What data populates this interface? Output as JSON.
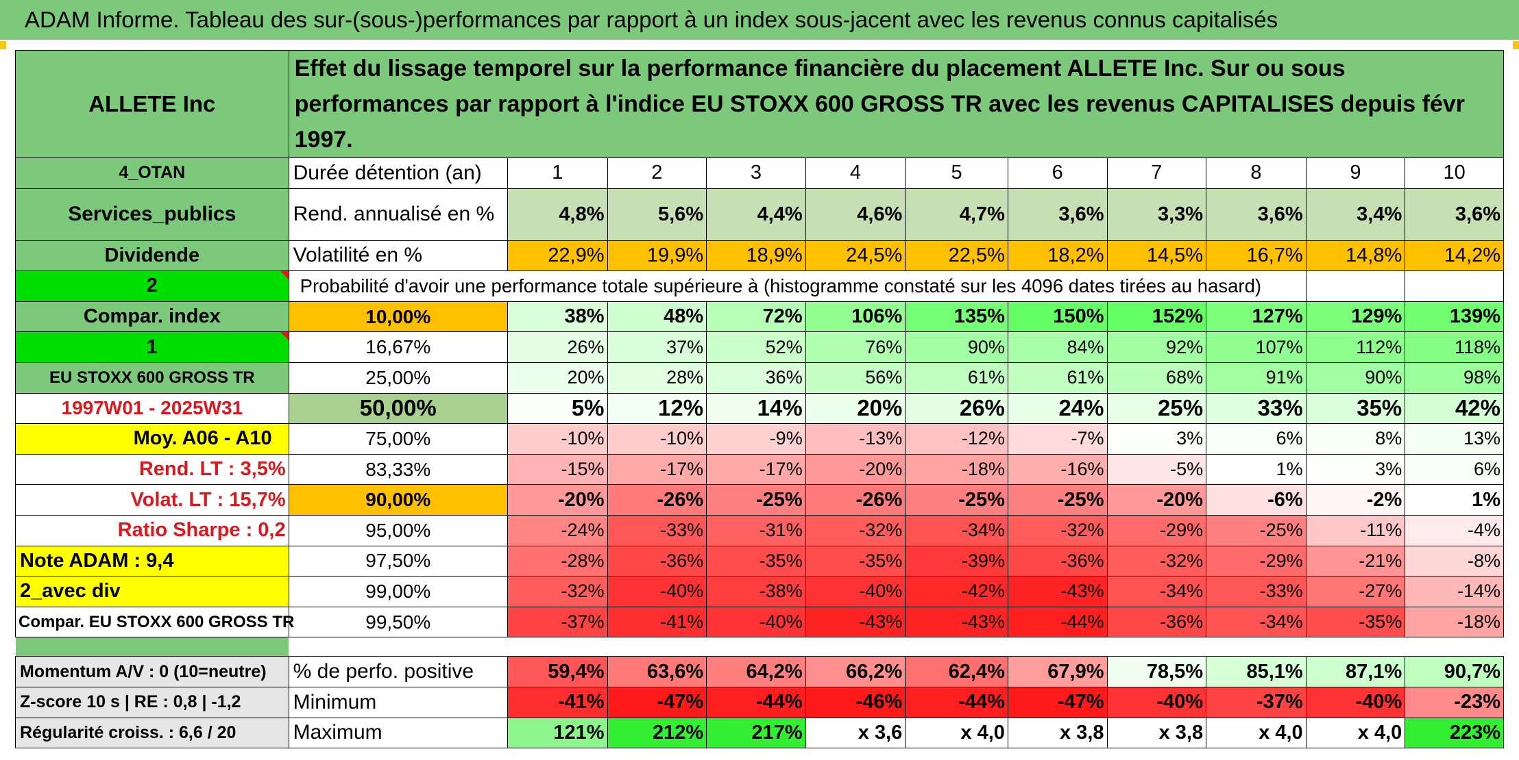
{
  "report_title": "ADAM Informe. Tableau des sur-(sous-)performances par rapport à un index sous-jacent avec les revenus connus capitalisés",
  "company": "ALLETE Inc",
  "headline": "Effet du lissage temporel sur la performance financière du placement ALLETE Inc. Sur ou sous performances par rapport à l'indice EU STOXX 600 GROSS TR avec les revenus CAPITALISES depuis févr 1997.",
  "colors": {
    "header_green": "#7dc97b",
    "orange": "#ffc000",
    "yellow": "#ffff00",
    "bright_green": "#00dd00",
    "red_text": "#d71920"
  },
  "left_labels": {
    "group": "4_OTAN",
    "sector": "Services_publics",
    "dividend": "Dividende",
    "param_2": "2",
    "compar_index": "Compar. index",
    "param_1": "1",
    "index_name": "EU STOXX 600 GROSS TR",
    "period": "1997W01 - 2025W31",
    "moy": "Moy. A06 - A10",
    "rend_lt": "Rend. LT :   3,5%",
    "volat_lt": "Volat. LT :   15,7%",
    "sharpe": "Ratio Sharpe :    0,2",
    "note": "Note ADAM : 9,4",
    "avec_div": "2_avec div",
    "compar_full": "Compar. EU STOXX 600 GROSS TR"
  },
  "header": {
    "duration_label": "Durée détention (an)",
    "years": [
      "1",
      "2",
      "3",
      "4",
      "5",
      "6",
      "7",
      "8",
      "9",
      "10"
    ]
  },
  "rend_row": {
    "label": "Rend. annualisé en %",
    "values": [
      "4,8%",
      "5,6%",
      "4,4%",
      "4,6%",
      "4,7%",
      "3,6%",
      "3,3%",
      "3,6%",
      "3,4%",
      "3,6%"
    ]
  },
  "vol_row": {
    "label": "Volatilité en %",
    "values": [
      "22,9%",
      "19,9%",
      "18,9%",
      "24,5%",
      "22,5%",
      "18,2%",
      "14,5%",
      "16,7%",
      "14,8%",
      "14,2%"
    ]
  },
  "probability_title": "Probabilité d'avoir une performance totale supérieure à (histogramme constaté sur les 4096 dates tirées au hasard)",
  "prob_rows": [
    {
      "threshold": "10,00%",
      "values": [
        "38%",
        "48%",
        "72%",
        "106%",
        "135%",
        "150%",
        "152%",
        "127%",
        "129%",
        "139%"
      ]
    },
    {
      "threshold": "16,67%",
      "values": [
        "26%",
        "37%",
        "52%",
        "76%",
        "90%",
        "84%",
        "92%",
        "107%",
        "112%",
        "118%"
      ]
    },
    {
      "threshold": "25,00%",
      "values": [
        "20%",
        "28%",
        "36%",
        "56%",
        "61%",
        "61%",
        "68%",
        "91%",
        "90%",
        "98%"
      ]
    },
    {
      "threshold": "50,00%",
      "values": [
        "5%",
        "12%",
        "14%",
        "20%",
        "26%",
        "24%",
        "25%",
        "33%",
        "35%",
        "42%"
      ]
    },
    {
      "threshold": "75,00%",
      "values": [
        "-10%",
        "-10%",
        "-9%",
        "-13%",
        "-12%",
        "-7%",
        "3%",
        "6%",
        "8%",
        "13%"
      ]
    },
    {
      "threshold": "83,33%",
      "values": [
        "-15%",
        "-17%",
        "-17%",
        "-20%",
        "-18%",
        "-16%",
        "-5%",
        "1%",
        "3%",
        "6%"
      ]
    },
    {
      "threshold": "90,00%",
      "values": [
        "-20%",
        "-26%",
        "-25%",
        "-26%",
        "-25%",
        "-25%",
        "-20%",
        "-6%",
        "-2%",
        "1%"
      ]
    },
    {
      "threshold": "95,00%",
      "values": [
        "-24%",
        "-33%",
        "-31%",
        "-32%",
        "-34%",
        "-32%",
        "-29%",
        "-25%",
        "-11%",
        "-4%"
      ]
    },
    {
      "threshold": "97,50%",
      "values": [
        "-28%",
        "-36%",
        "-35%",
        "-35%",
        "-39%",
        "-36%",
        "-32%",
        "-29%",
        "-21%",
        "-8%"
      ]
    },
    {
      "threshold": "99,00%",
      "values": [
        "-32%",
        "-40%",
        "-38%",
        "-40%",
        "-42%",
        "-43%",
        "-34%",
        "-33%",
        "-27%",
        "-14%"
      ]
    },
    {
      "threshold": "99,50%",
      "values": [
        "-37%",
        "-41%",
        "-40%",
        "-43%",
        "-43%",
        "-44%",
        "-36%",
        "-34%",
        "-35%",
        "-18%"
      ]
    }
  ],
  "footer_rows": [
    {
      "left": "Momentum A/V : 0 (10=neutre)",
      "label": "% de perfo. positive",
      "values": [
        "59,4%",
        "63,6%",
        "64,2%",
        "66,2%",
        "62,4%",
        "67,9%",
        "78,5%",
        "85,1%",
        "87,1%",
        "90,7%"
      ]
    },
    {
      "left": "Z-score 10 s | RE : 0,8 | -1,2",
      "label": "Minimum",
      "values": [
        "-41%",
        "-47%",
        "-44%",
        "-46%",
        "-44%",
        "-47%",
        "-40%",
        "-37%",
        "-40%",
        "-23%"
      ]
    },
    {
      "left": "Régularité croiss. : 6,6 / 20",
      "label": "Maximum",
      "values": [
        "121%",
        "212%",
        "217%",
        "x 3,6",
        "x 4,0",
        "x 3,8",
        "x 3,8",
        "x 4,0",
        "x 4,0",
        "223%"
      ]
    }
  ]
}
